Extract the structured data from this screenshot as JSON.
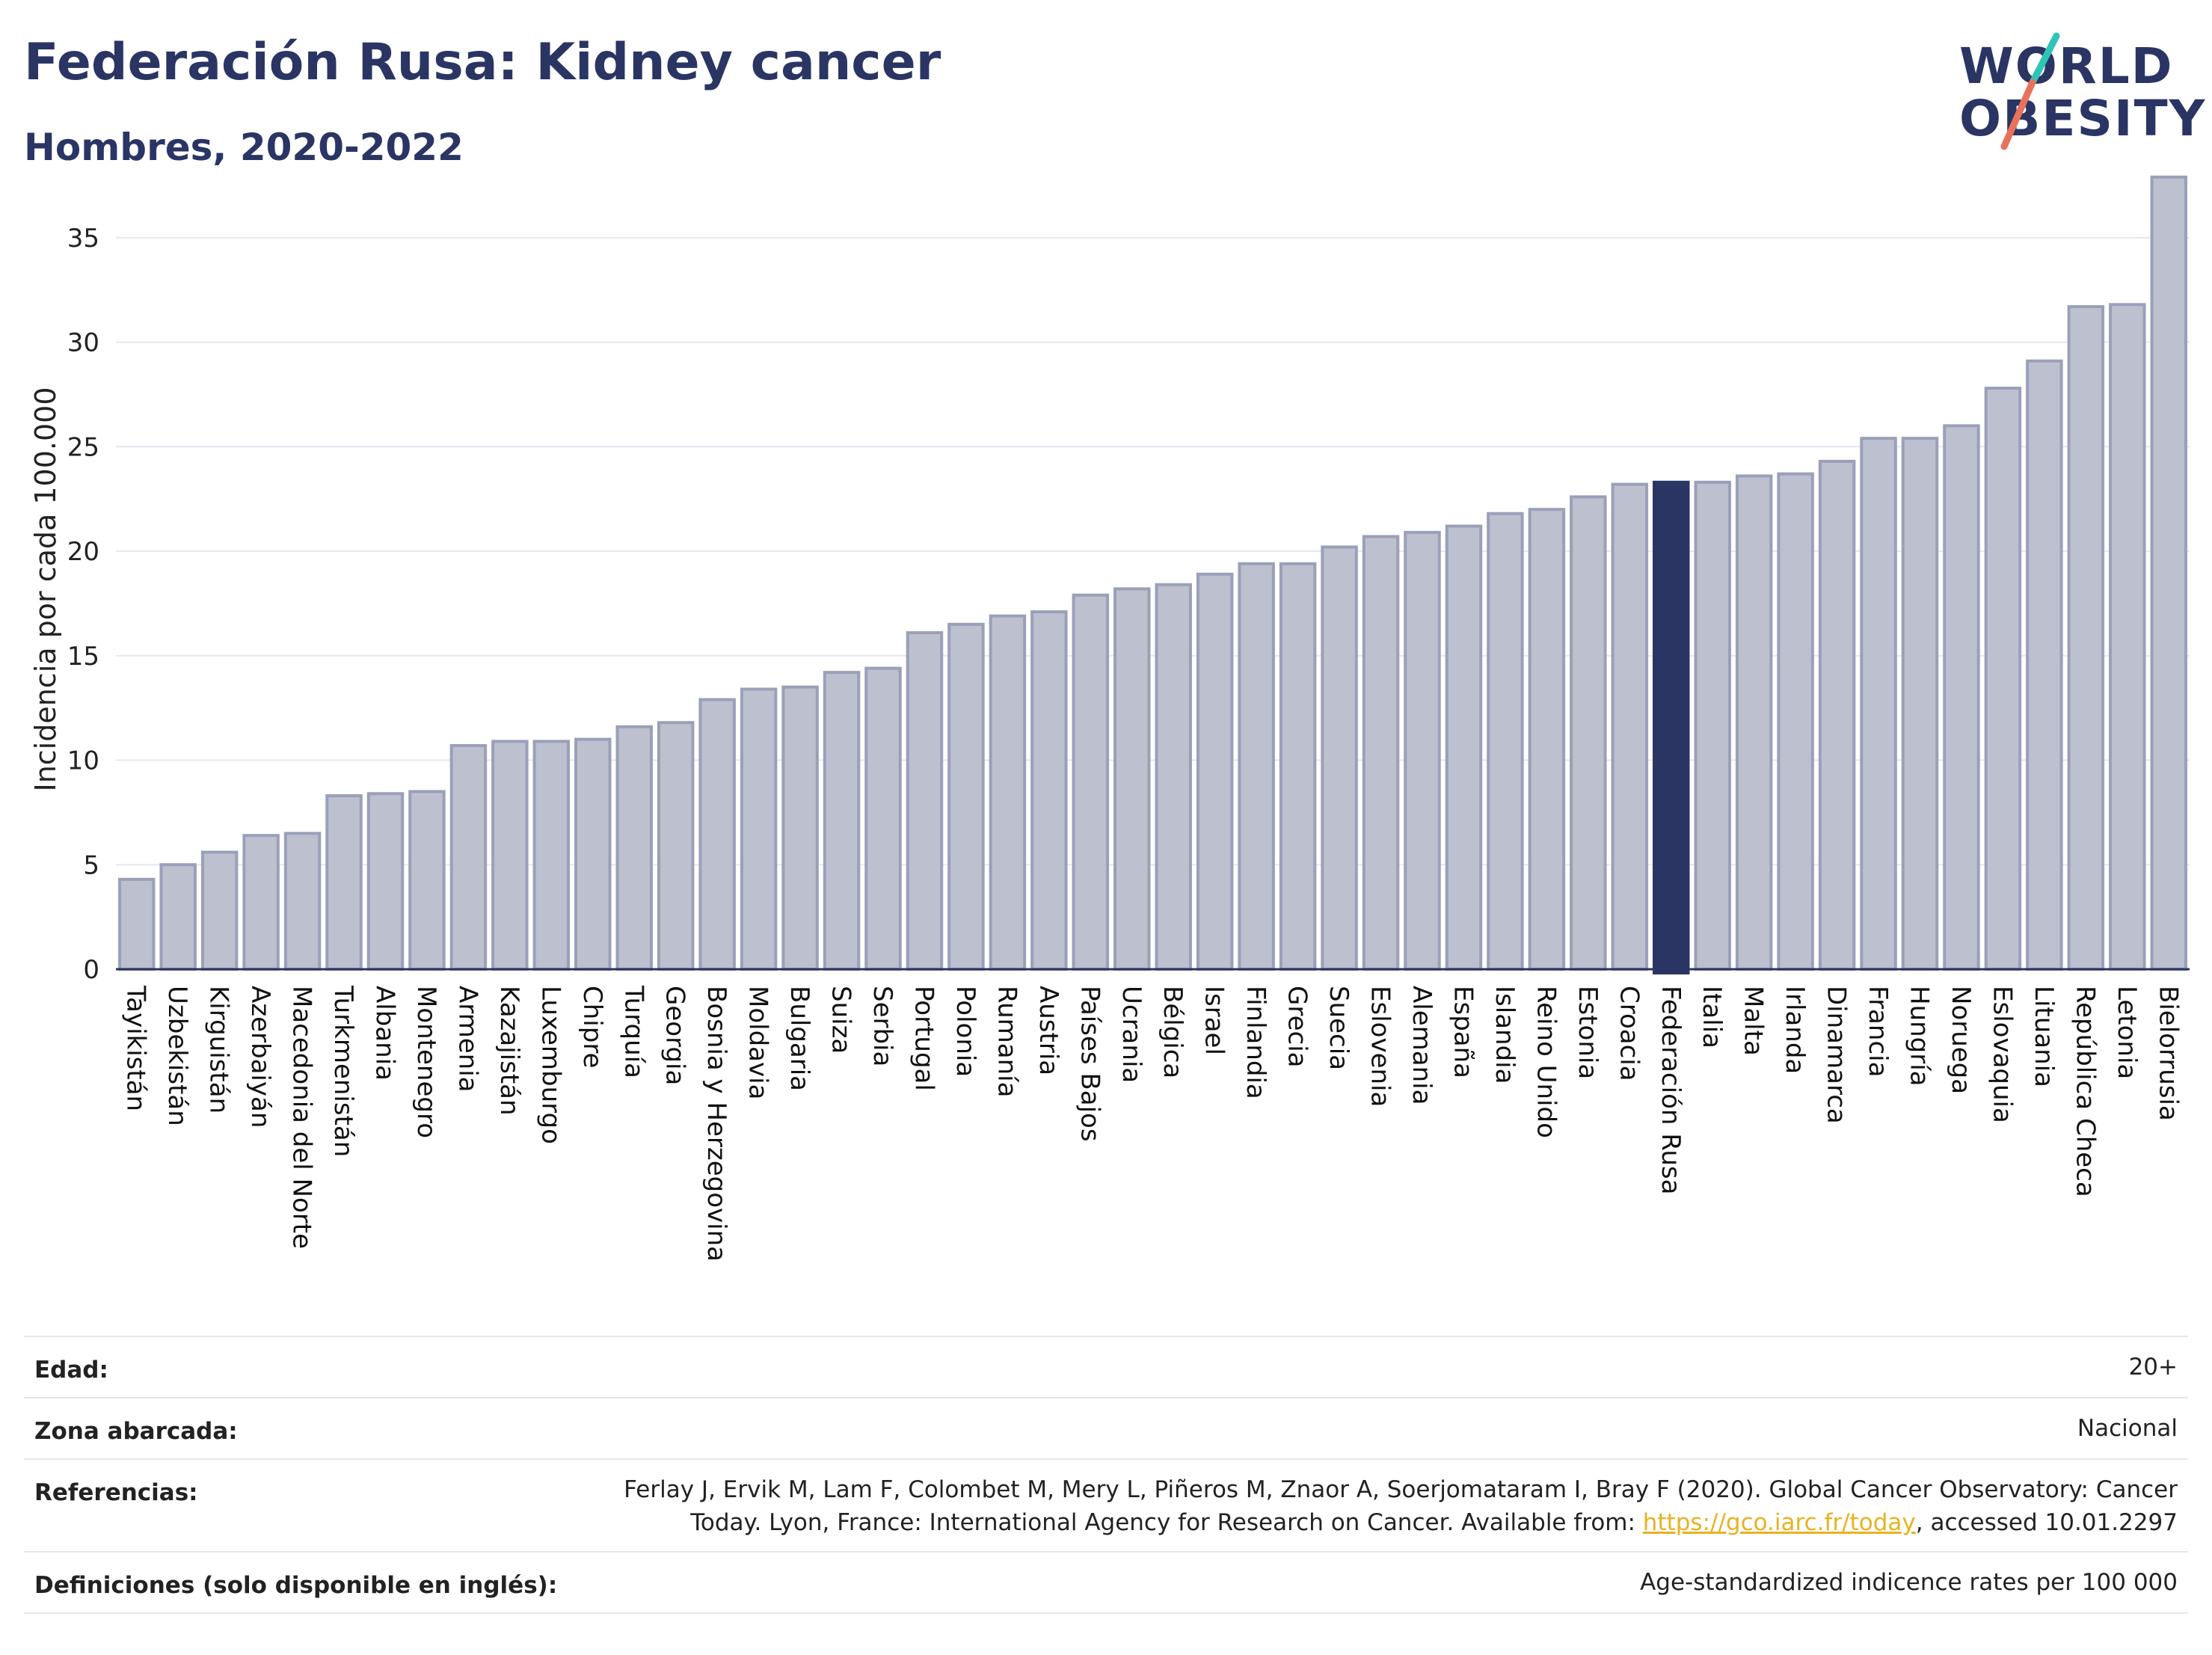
{
  "header": {
    "title": "Federación Rusa: Kidney cancer",
    "subtitle": "Hombres, 2020-2022"
  },
  "logo": {
    "line1": "WORLD",
    "line2": "OBESITY",
    "accent_colors": [
      "#2ec4b6",
      "#e8725c"
    ]
  },
  "colors": {
    "bar_default": "#bcc0cf",
    "bar_border": "#9aa0b8",
    "bar_highlight": "#2a3564",
    "text_dark": "#2a3564",
    "grid": "#e6e6ee"
  },
  "chart_data": {
    "type": "bar",
    "ylabel": "Incidencia por cada 100.000",
    "ylim": [
      0,
      38.5
    ],
    "yticks": [
      0,
      5,
      10,
      15,
      20,
      25,
      30,
      35
    ],
    "highlight": "Federación Rusa",
    "grid": true,
    "categories": [
      "Tayikistán",
      "Uzbekistán",
      "Kirguistán",
      "Azerbaiyán",
      "Macedonia del Norte",
      "Turkmenistán",
      "Albania",
      "Montenegro",
      "Armenia",
      "Kazajistán",
      "Luxemburgo",
      "Chipre",
      "Turquía",
      "Georgia",
      "Bosnia y Herzegovina",
      "Moldavia",
      "Bulgaria",
      "Suiza",
      "Serbia",
      "Portugal",
      "Polonia",
      "Rumanía",
      "Austria",
      "Países Bajos",
      "Ucrania",
      "Bélgica",
      "Israel",
      "Finlandia",
      "Grecia",
      "Suecia",
      "Eslovenia",
      "Alemania",
      "España",
      "Islandia",
      "Reino Unido",
      "Estonia",
      "Croacia",
      "Federación Rusa",
      "Italia",
      "Malta",
      "Irlanda",
      "Dinamarca",
      "Francia",
      "Hungría",
      "Noruega",
      "Eslovaquia",
      "Lituania",
      "República Checa",
      "Letonia",
      "Bielorrusia"
    ],
    "values": [
      4.3,
      5.0,
      5.6,
      6.4,
      6.5,
      8.3,
      8.4,
      8.5,
      10.7,
      10.9,
      10.9,
      11.0,
      11.6,
      11.8,
      12.9,
      13.4,
      13.5,
      14.2,
      14.4,
      16.1,
      16.5,
      16.9,
      17.1,
      17.9,
      18.2,
      18.4,
      18.9,
      19.4,
      19.4,
      20.2,
      20.7,
      20.9,
      21.2,
      21.8,
      22.0,
      22.6,
      23.2,
      23.3,
      23.3,
      23.6,
      23.7,
      24.3,
      25.4,
      25.4,
      26.0,
      27.8,
      29.1,
      31.7,
      31.8,
      37.9
    ]
  },
  "footer": [
    {
      "label": "Edad:",
      "value": "20+"
    },
    {
      "label": "Zona abarcada:",
      "value": "Nacional"
    },
    {
      "label": "Referencias:",
      "value_pre": "Ferlay J, Ervik M, Lam F, Colombet M, Mery L, Piñeros M, Znaor A, Soerjomataram I, Bray F (2020). Global Cancer Observatory: Cancer Today. Lyon, France: International Agency for Research on Cancer. Available from: ",
      "link": "https://gco.iarc.fr/today",
      "value_post": ", accessed 10.01.2297"
    },
    {
      "label": "Definiciones (solo disponible en inglés):",
      "value": "Age-standardized indicence rates per 100 000"
    }
  ]
}
